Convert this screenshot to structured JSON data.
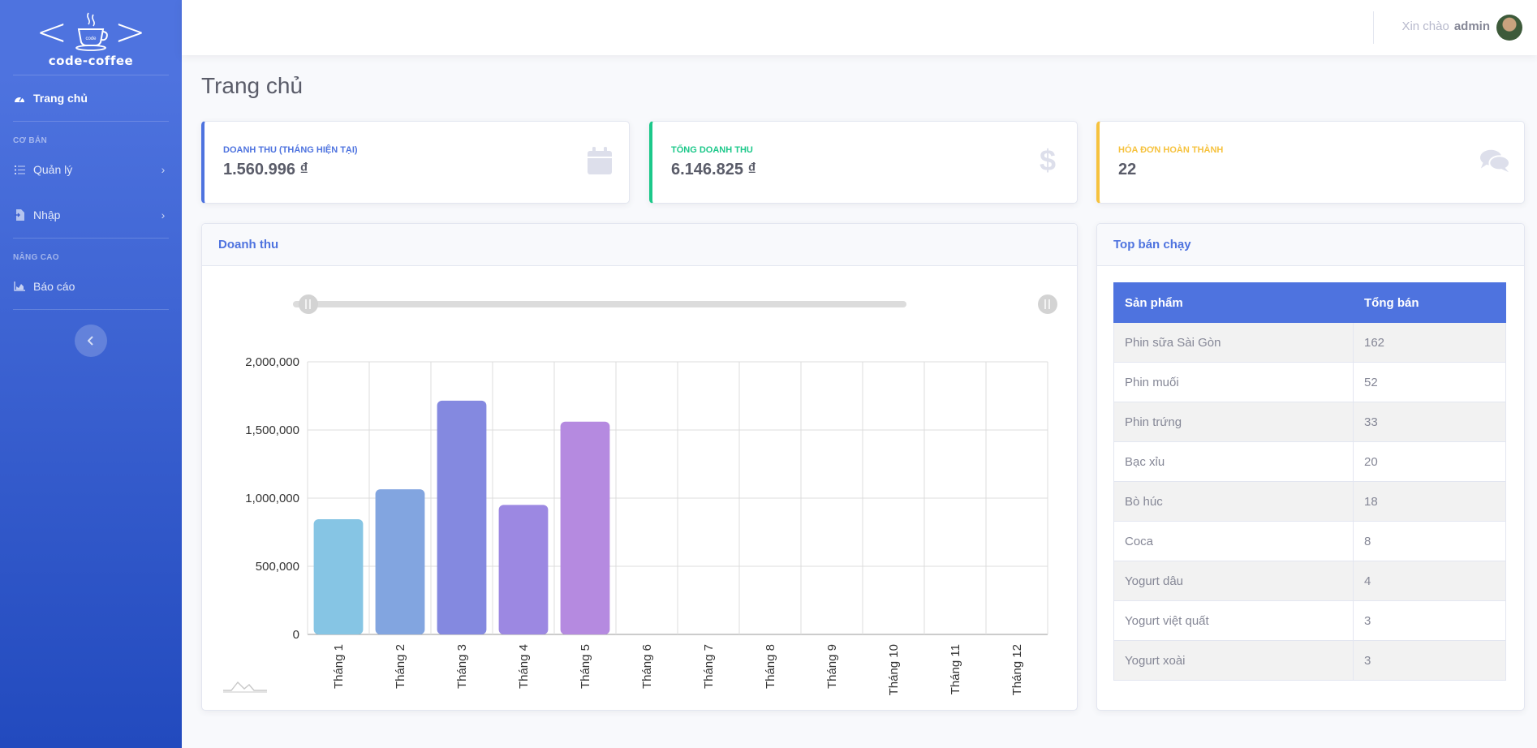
{
  "brand": {
    "logo_text": "code",
    "name": "code-coffee"
  },
  "sidebar": {
    "home": "Trang chủ",
    "section_basic": "CƠ BẢN",
    "manage": "Quản lý",
    "import": "Nhập",
    "section_advanced": "NÂNG CAO",
    "report": "Báo cáo"
  },
  "topbar": {
    "greeting": "Xin chào",
    "username": "admin"
  },
  "page": {
    "title": "Trang chủ"
  },
  "stats": [
    {
      "label": "DOANH THU (THÁNG HIỆN TẠI)",
      "value": "1.560.996 ₫",
      "color": "#4e73df",
      "icon": "calendar-icon"
    },
    {
      "label": "TỔNG DOANH THU",
      "value": "6.146.825 ₫",
      "color": "#1cc88a",
      "icon": "dollar-icon"
    },
    {
      "label": "HÓA ĐƠN HOÀN THÀNH",
      "value": "22",
      "color": "#f6c23e",
      "icon": "comments-icon"
    }
  ],
  "revenue_card": {
    "title": "Doanh thu"
  },
  "top_card": {
    "title": "Top bán chạy",
    "headers": [
      "Sản phẩm",
      "Tổng bán"
    ],
    "rows": [
      [
        "Phin sữa Sài Gòn",
        "162"
      ],
      [
        "Phin muối",
        "52"
      ],
      [
        "Phin trứng",
        "33"
      ],
      [
        "Bạc xỉu",
        "20"
      ],
      [
        "Bò húc",
        "18"
      ],
      [
        "Coca",
        "8"
      ],
      [
        "Yogurt dâu",
        "4"
      ],
      [
        "Yogurt việt quất",
        "3"
      ],
      [
        "Yogurt xoài",
        "3"
      ]
    ]
  },
  "chart_data": {
    "type": "bar",
    "categories": [
      "Tháng 1",
      "Tháng 2",
      "Tháng 3",
      "Tháng 4",
      "Tháng 5",
      "Tháng 6",
      "Tháng 7",
      "Tháng 8",
      "Tháng 9",
      "Tháng 10",
      "Tháng 11",
      "Tháng 12"
    ],
    "values": [
      845000,
      1065000,
      1715000,
      950000,
      1560996,
      0,
      0,
      0,
      0,
      0,
      0,
      0
    ],
    "colors": [
      "#86c5e4",
      "#82a5e0",
      "#8489e0",
      "#9c88e2",
      "#b58ae0"
    ],
    "ylim": [
      0,
      2000000
    ],
    "yticks": [
      0,
      500000,
      1000000,
      1500000,
      2000000
    ],
    "ytick_labels": [
      "0",
      "500,000",
      "1,000,000",
      "1,500,000",
      "2,000,000"
    ],
    "grid": true,
    "legend": "none"
  }
}
